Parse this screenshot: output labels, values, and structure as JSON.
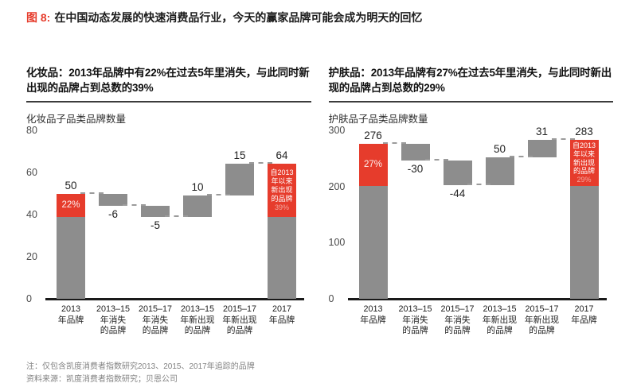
{
  "page_title": {
    "prefix": "图 8:",
    "text": "在中国动态发展的快速消费品行业，今天的赢家品牌可能会成为明天的回忆"
  },
  "colors": {
    "accent_red": "#e63c2c",
    "bar_gray": "#8d8d8d",
    "dash_gray": "#9b9b9b"
  },
  "footnotes": [
    "注：仅包含凯度消费者指数研究2013、2015、2017年追踪的品牌",
    "资料来源：凯度消费者指数研究；贝恩公司"
  ],
  "chart_data": [
    {
      "type": "bar",
      "subtype": "waterfall",
      "header": "化妆品：2013年品牌中有22%在过去5年里消失，与此同时新出现的品牌占到总数的39%",
      "ylabel": "化妆品子品类品牌数量",
      "ylim": [
        0,
        80
      ],
      "yticks": [
        0,
        20,
        40,
        60,
        80
      ],
      "categories": [
        [
          "2013",
          "年品牌"
        ],
        [
          "2013–15",
          "年消失",
          "的品牌"
        ],
        [
          "2015–17",
          "年消失",
          "的品牌"
        ],
        [
          "2013–15",
          "年新出现",
          "的品牌"
        ],
        [
          "2015–17",
          "年新出现",
          "的品牌"
        ],
        [
          "2017",
          "年品牌"
        ]
      ],
      "bars": [
        {
          "kind": "total",
          "value": 50,
          "label": "50",
          "red": {
            "fraction": 0.22,
            "label": "22%"
          }
        },
        {
          "kind": "delta",
          "value": -6,
          "label": "-6"
        },
        {
          "kind": "delta",
          "value": -5,
          "label": "-5"
        },
        {
          "kind": "delta",
          "value": 10,
          "label": "10"
        },
        {
          "kind": "delta",
          "value": 15,
          "label": "15"
        },
        {
          "kind": "total",
          "value": 64,
          "label": "64",
          "red": {
            "fraction": 0.39,
            "lines": [
              "自2013",
              "年以来",
              "新出现",
              "的品牌"
            ],
            "pct": "39%"
          }
        }
      ]
    },
    {
      "type": "bar",
      "subtype": "waterfall",
      "header": "护肤品：2013年品牌有27%在过去5年里消失，与此同时新出现的品牌占到总数的29%",
      "ylabel": "护肤品子品类品牌数量",
      "ylim": [
        0,
        300
      ],
      "yticks": [
        0,
        100,
        200,
        300
      ],
      "categories": [
        [
          "2013",
          "年品牌"
        ],
        [
          "2013–15",
          "年消失",
          "的品牌"
        ],
        [
          "2015–17",
          "年消失",
          "的品牌"
        ],
        [
          "2013–15",
          "年新出现",
          "的品牌"
        ],
        [
          "2015–17",
          "年新出现",
          "的品牌"
        ],
        [
          "2017",
          "年品牌"
        ]
      ],
      "bars": [
        {
          "kind": "total",
          "value": 276,
          "label": "276",
          "red": {
            "fraction": 0.27,
            "label": "27%"
          }
        },
        {
          "kind": "delta",
          "value": -30,
          "label": "-30"
        },
        {
          "kind": "delta",
          "value": -44,
          "label": "-44"
        },
        {
          "kind": "delta",
          "value": 50,
          "label": "50"
        },
        {
          "kind": "delta",
          "value": 31,
          "label": "31"
        },
        {
          "kind": "total",
          "value": 283,
          "label": "283",
          "red": {
            "fraction": 0.29,
            "lines": [
              "自2013",
              "年以来",
              "新出现",
              "的品牌"
            ],
            "pct": "29%"
          }
        }
      ]
    }
  ]
}
